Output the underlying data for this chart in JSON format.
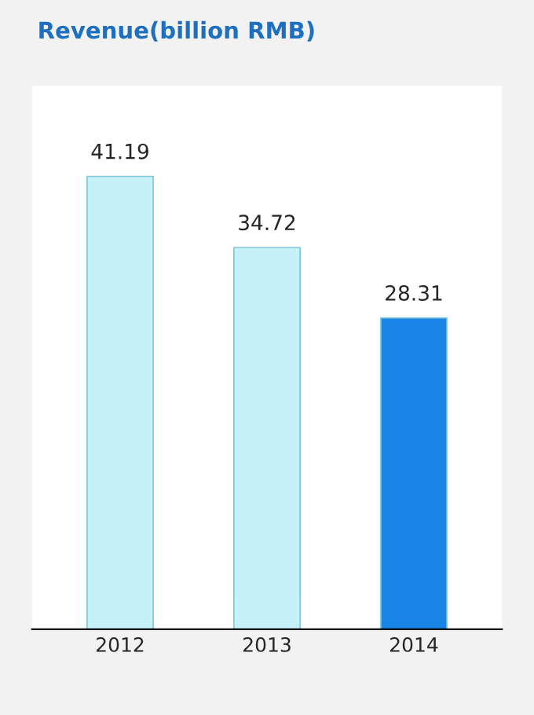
{
  "chart_data": {
    "type": "bar",
    "title": "Revenue(billion RMB)",
    "categories": [
      "2012",
      "2013",
      "2014"
    ],
    "values": [
      41.19,
      34.72,
      28.31
    ],
    "colors": [
      "#c6f1f8",
      "#c6f1f8",
      "#1784e6"
    ],
    "data_labels": true,
    "grid": false,
    "legend": false
  }
}
